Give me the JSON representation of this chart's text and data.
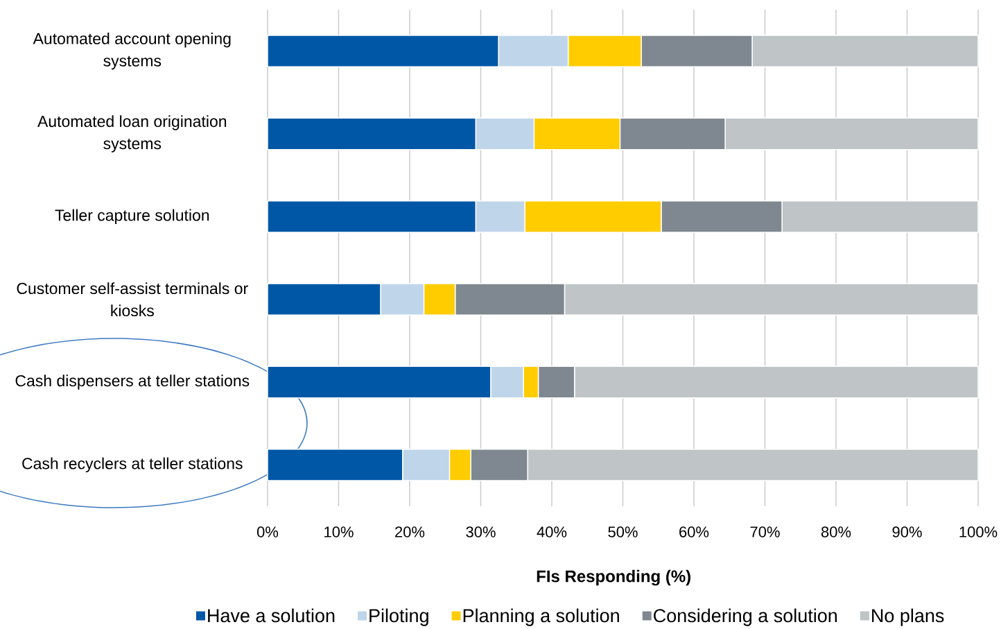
{
  "chart_data": {
    "type": "bar",
    "orientation": "horizontal",
    "stacked": true,
    "categories": [
      "Automated account opening systems",
      "Automated loan origination systems",
      "Teller capture solution",
      "Customer self-assist terminals or kiosks",
      "Cash dispensers at teller stations",
      "Cash recyclers at teller stations"
    ],
    "series": [
      {
        "name": "Have a solution",
        "color": "#0057A6",
        "values": [
          32.5,
          29.3,
          29.3,
          15.9,
          31.4,
          19.0
        ]
      },
      {
        "name": "Piloting",
        "color": "#BFD5EA",
        "values": [
          9.8,
          8.2,
          6.9,
          6.1,
          4.6,
          6.6
        ]
      },
      {
        "name": "Planning a solution",
        "color": "#FFCC00",
        "values": [
          10.3,
          12.1,
          19.2,
          4.4,
          2.1,
          3.0
        ]
      },
      {
        "name": "Considering a solution",
        "color": "#7F8890",
        "values": [
          15.6,
          14.8,
          17.0,
          15.4,
          5.1,
          8.0
        ]
      },
      {
        "name": "No plans",
        "color": "#BFC4C7",
        "values": [
          31.8,
          35.6,
          27.6,
          58.2,
          56.8,
          63.4
        ]
      }
    ],
    "xlabel": "FIs Responding (%)",
    "xlim": [
      0,
      100
    ],
    "xticks": [
      {
        "value": 0,
        "label": "0%"
      },
      {
        "value": 10,
        "label": "10%"
      },
      {
        "value": 20,
        "label": "20%"
      },
      {
        "value": 30,
        "label": "30%"
      },
      {
        "value": 40,
        "label": "40%"
      },
      {
        "value": 50,
        "label": "50%"
      },
      {
        "value": 60,
        "label": "60%"
      },
      {
        "value": 70,
        "label": "70%"
      },
      {
        "value": 80,
        "label": "80%"
      },
      {
        "value": 90,
        "label": "90%"
      },
      {
        "value": 100,
        "label": "100%"
      }
    ],
    "grid": "x",
    "legend": "bottom"
  }
}
